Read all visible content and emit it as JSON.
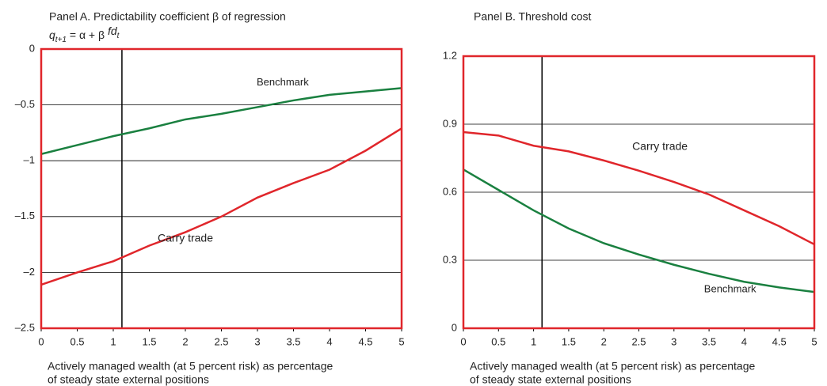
{
  "chart_data": [
    {
      "type": "line",
      "title": "Panel A. Predictability coefficient β of regression",
      "formula": [
        "q",
        "t+1",
        " = α + β ",
        "fd",
        "t"
      ],
      "xlabel": [
        "Actively managed wealth (at 5 percent risk) as percentage",
        "of steady state external positions"
      ],
      "x": [
        0,
        0.5,
        1,
        1.5,
        2,
        2.5,
        3,
        3.5,
        4,
        4.5,
        5
      ],
      "series": [
        {
          "name": "Benchmark",
          "color": "#1a8040",
          "values": [
            -0.94,
            -0.86,
            -0.78,
            -0.71,
            -0.63,
            -0.58,
            -0.52,
            -0.46,
            -0.41,
            -0.38,
            -0.35
          ]
        },
        {
          "name": "Carry trade",
          "color": "#e0262b",
          "values": [
            -2.11,
            -2.0,
            -1.9,
            -1.76,
            -1.64,
            -1.5,
            -1.33,
            -1.2,
            -1.08,
            -0.91,
            -0.71
          ]
        }
      ],
      "xlim": [
        0,
        5
      ],
      "xticks": [
        0,
        0.5,
        1,
        1.5,
        2,
        2.5,
        3,
        3.5,
        4,
        4.5,
        5
      ],
      "ylim": [
        -2.5,
        0
      ],
      "yticks": [
        {
          "value": -2.5,
          "label": "–2.5"
        },
        {
          "value": -2,
          "label": "–2"
        },
        {
          "value": -1.5,
          "label": "–1.5"
        },
        {
          "value": -1,
          "label": "–1"
        },
        {
          "value": -0.5,
          "label": "–0.5"
        },
        0
      ],
      "vline": 1.12,
      "grid": true,
      "frame_color": "#e0262b"
    },
    {
      "type": "line",
      "title": "Panel B. Threshold cost",
      "xlabel": [
        "Actively managed wealth (at 5 percent risk) as percentage",
        "of steady state external positions"
      ],
      "x": [
        0,
        0.5,
        1,
        1.5,
        2,
        2.5,
        3,
        3.5,
        4,
        4.5,
        5
      ],
      "series": [
        {
          "name": "Carry trade",
          "color": "#e0262b",
          "values": [
            0.865,
            0.85,
            0.805,
            0.78,
            0.74,
            0.695,
            0.645,
            0.59,
            0.52,
            0.45,
            0.37
          ]
        },
        {
          "name": "Benchmark",
          "color": "#1a8040",
          "values": [
            0.7,
            0.61,
            0.52,
            0.44,
            0.375,
            0.325,
            0.28,
            0.24,
            0.205,
            0.18,
            0.16
          ]
        }
      ],
      "xlim": [
        0,
        5
      ],
      "xticks": [
        0,
        0.5,
        1,
        1.5,
        2,
        2.5,
        3,
        3.5,
        4,
        4.5,
        5
      ],
      "ylim": [
        0,
        1.2
      ],
      "yticks": [
        0,
        0.3,
        0.6,
        0.9,
        1.2
      ],
      "vline": 1.12,
      "grid": true,
      "frame_color": "#e0262b"
    }
  ]
}
